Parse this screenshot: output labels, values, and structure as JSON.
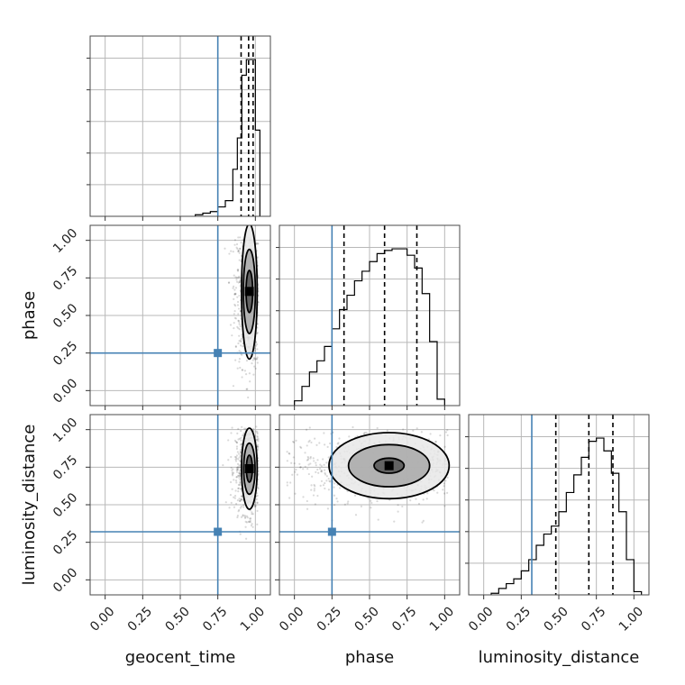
{
  "chart_data": {
    "type": "corner",
    "parameters": [
      "geocent_time",
      "phase",
      "luminosity_distance"
    ],
    "truths": {
      "geocent_time": 0.75,
      "phase": 0.25,
      "luminosity_distance": 0.32
    },
    "truth_color": "#4682b4",
    "tick_labels": [
      "0.00",
      "0.25",
      "0.50",
      "0.75",
      "1.00"
    ],
    "grid": true,
    "histograms": {
      "geocent_time": {
        "x_range": [
          -0.1,
          1.1
        ],
        "quantiles": [
          0.905,
          0.955,
          0.985
        ],
        "bin_edges": [
          0.6,
          0.65,
          0.7,
          0.75,
          0.8,
          0.85,
          0.88,
          0.91,
          0.94,
          0.97,
          1.0,
          1.03
        ],
        "counts": [
          1,
          2,
          3,
          6,
          10,
          30,
          50,
          90,
          100,
          100,
          55
        ]
      },
      "phase": {
        "x_range": [
          -0.1,
          1.1
        ],
        "quantiles": [
          0.33,
          0.6,
          0.815
        ],
        "bin_edges": [
          0.0,
          0.05,
          0.1,
          0.15,
          0.2,
          0.25,
          0.3,
          0.35,
          0.4,
          0.45,
          0.5,
          0.55,
          0.6,
          0.65,
          0.7,
          0.75,
          0.8,
          0.85,
          0.9,
          0.95,
          1.0
        ],
        "counts": [
          3,
          12,
          21,
          28,
          37,
          48,
          60,
          69,
          78,
          84,
          90,
          95,
          97,
          98,
          98,
          94,
          86,
          70,
          40,
          4
        ]
      },
      "luminosity_distance": {
        "x_range": [
          -0.1,
          1.1
        ],
        "quantiles": [
          0.48,
          0.7,
          0.86
        ],
        "bin_edges": [
          0.05,
          0.1,
          0.15,
          0.2,
          0.25,
          0.3,
          0.35,
          0.4,
          0.45,
          0.5,
          0.55,
          0.6,
          0.65,
          0.7,
          0.75,
          0.8,
          0.85,
          0.9,
          0.95,
          1.0,
          1.05
        ],
        "counts": [
          1,
          4,
          7,
          10,
          15,
          22,
          31,
          38,
          43,
          52,
          64,
          75,
          86,
          96,
          98,
          90,
          76,
          52,
          22,
          2
        ]
      }
    },
    "contours": {
      "geocent_time_vs_phase": {
        "center": [
          0.96,
          0.66
        ],
        "levels": [
          {
            "rx": 0.052,
            "ry": 0.45
          },
          {
            "rx": 0.04,
            "ry": 0.28
          },
          {
            "rx": 0.022,
            "ry": 0.14
          }
        ]
      },
      "geocent_time_vs_luminosity_distance": {
        "center": [
          0.96,
          0.74
        ],
        "levels": [
          {
            "rx": 0.052,
            "ry": 0.27
          },
          {
            "rx": 0.038,
            "ry": 0.17
          },
          {
            "rx": 0.02,
            "ry": 0.09
          }
        ]
      },
      "phase_vs_luminosity_distance": {
        "center": [
          0.63,
          0.76
        ],
        "levels": [
          {
            "rx": 0.4,
            "ry": 0.22
          },
          {
            "rx": 0.27,
            "ry": 0.14
          },
          {
            "rx": 0.1,
            "ry": 0.05
          }
        ]
      }
    }
  }
}
